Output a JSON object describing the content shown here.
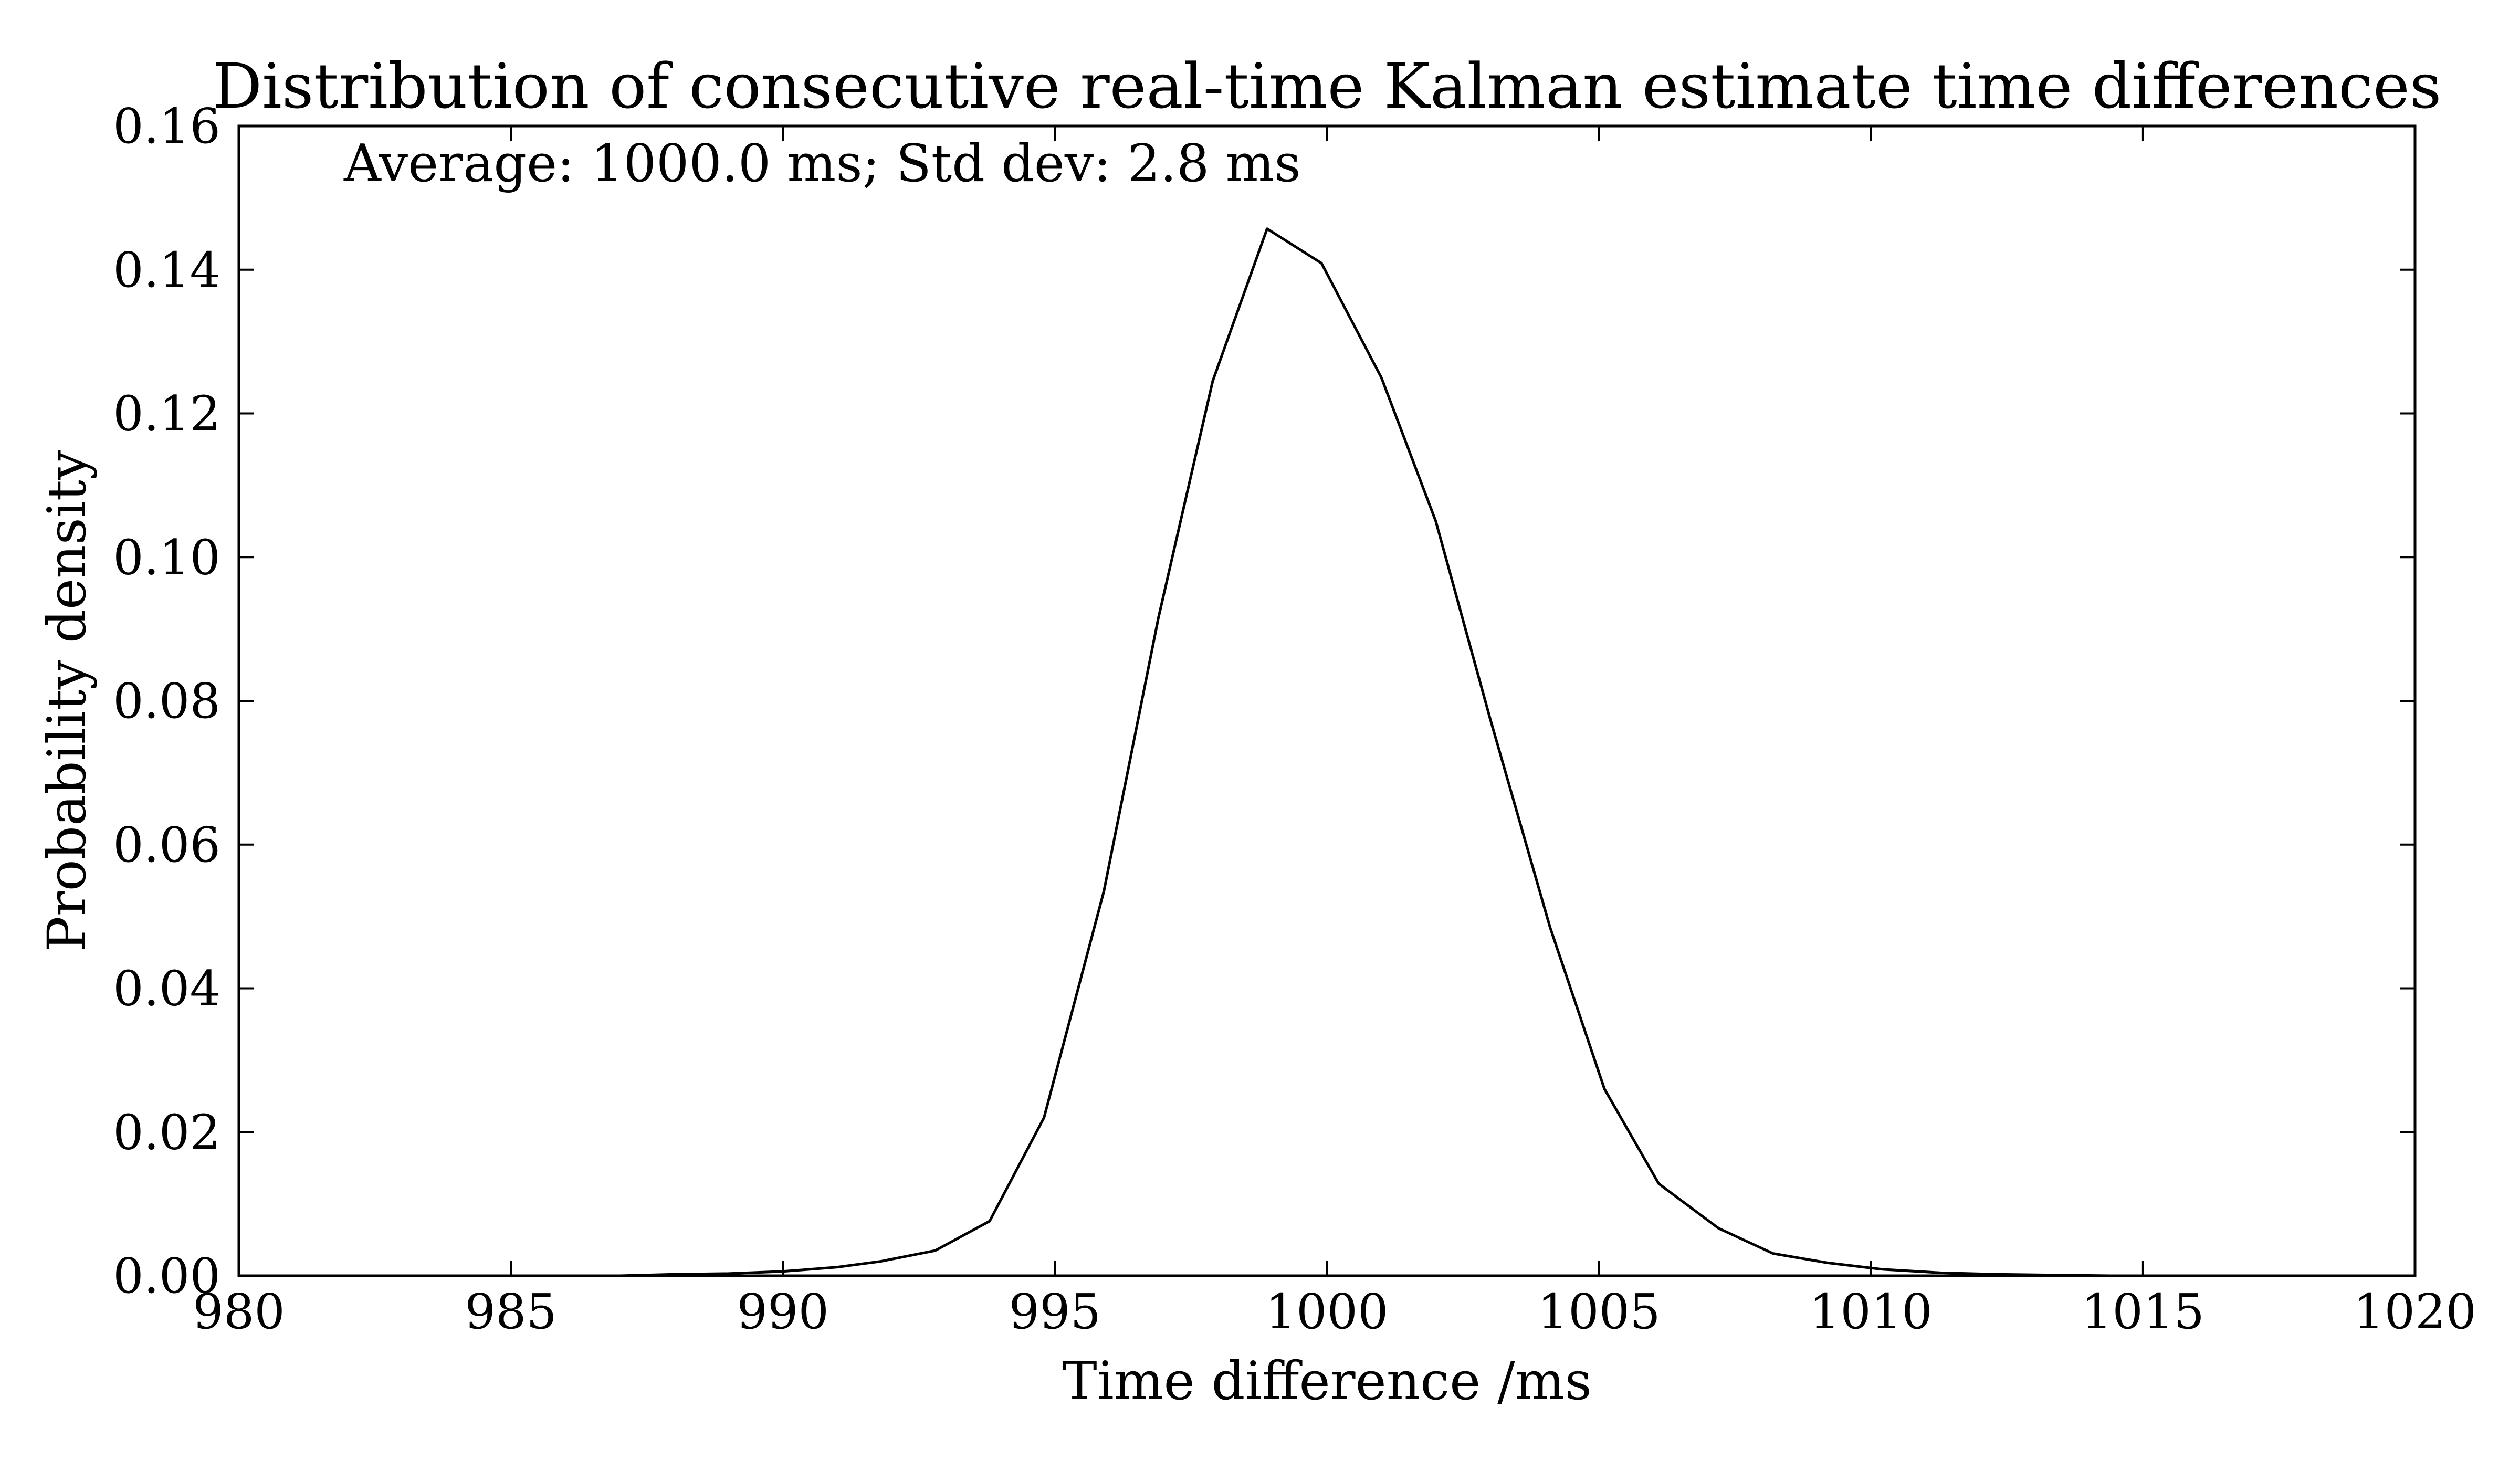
{
  "chart_data": {
    "type": "line",
    "title": "Distribution of consecutive real-time Kalman estimate time differences",
    "annotation": "Average: 1000.0 ms; Std dev: 2.8 ms",
    "xlabel": "Time difference /ms",
    "ylabel": "Probability density",
    "xlim": [
      980,
      1020
    ],
    "ylim": [
      0,
      0.16
    ],
    "xticks": [
      980,
      985,
      990,
      995,
      1000,
      1005,
      1010,
      1015,
      1020
    ],
    "xtick_labels": [
      "980",
      "985",
      "990",
      "995",
      "1000",
      "1005",
      "1010",
      "1015",
      "1020"
    ],
    "yticks": [
      0,
      0.02,
      0.04,
      0.06,
      0.08,
      0.1,
      0.12,
      0.14,
      0.16
    ],
    "ytick_labels": [
      "0.00",
      "0.02",
      "0.04",
      "0.06",
      "0.08",
      "0.10",
      "0.12",
      "0.14",
      "0.16"
    ],
    "grid": false,
    "line_color": "#000000",
    "series": [
      {
        "x": [
          983.0,
          984.0,
          985.0,
          986.0,
          987.0,
          988.0,
          989.0,
          990.0,
          991.0,
          991.8,
          992.8,
          993.8,
          994.8,
          995.9,
          996.9,
          997.9,
          998.9,
          999.9,
          1001.0,
          1002.0,
          1003.0,
          1004.1,
          1005.1,
          1006.1,
          1007.2,
          1008.2,
          1009.2,
          1010.2,
          1011.3,
          1012.3,
          1013.3,
          1014.4,
          1015.4,
          1016.4,
          1017.4,
          1018.5,
          1019.5
        ],
        "y": [
          0.0,
          0.0,
          0.0,
          0.0,
          0.0,
          0.0002,
          0.0003,
          0.0006,
          0.0012,
          0.002,
          0.0035,
          0.0076,
          0.022,
          0.0535,
          0.0915,
          0.1245,
          0.1457,
          0.1409,
          0.125,
          0.105,
          0.0775,
          0.0485,
          0.026,
          0.0128,
          0.0066,
          0.0031,
          0.0018,
          0.0009,
          0.0004,
          0.0002,
          0.0001,
          0.0,
          0.0,
          0.0,
          0.0,
          0.0,
          0.0
        ]
      }
    ]
  }
}
